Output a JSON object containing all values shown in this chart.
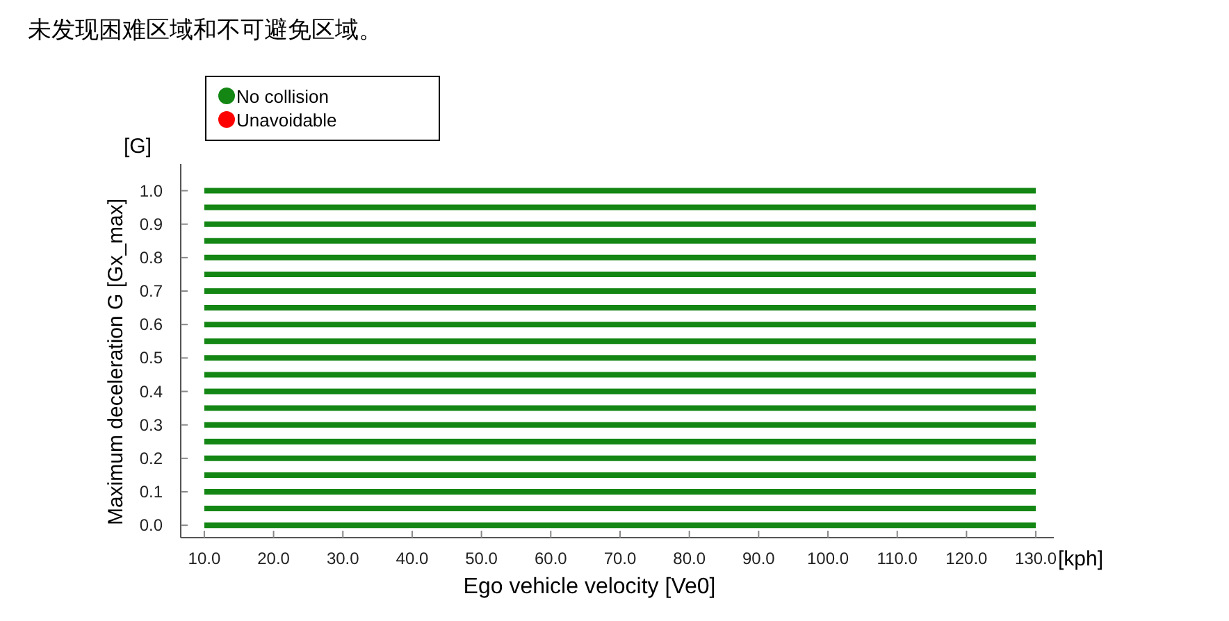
{
  "chart_data": {
    "type": "line",
    "title": "未发现困难区域和不可避免区域。",
    "xlabel": "Ego vehicle velocity [Ve0]",
    "ylabel": "Maximum deceleration G [Gx_max]",
    "annotations": [
      "[G]",
      "[kph]"
    ],
    "x": [
      10,
      130
    ],
    "series": [
      {
        "name": "No collision",
        "color": "#138613",
        "values": [
          0.0,
          0.0
        ]
      },
      {
        "color": "#138613",
        "values": [
          0.05,
          0.05
        ]
      },
      {
        "color": "#138613",
        "values": [
          0.1,
          0.1
        ]
      },
      {
        "color": "#138613",
        "values": [
          0.15,
          0.15
        ]
      },
      {
        "color": "#138613",
        "values": [
          0.2,
          0.2
        ]
      },
      {
        "color": "#138613",
        "values": [
          0.25,
          0.25
        ]
      },
      {
        "color": "#138613",
        "values": [
          0.3,
          0.3
        ]
      },
      {
        "color": "#138613",
        "values": [
          0.35,
          0.35
        ]
      },
      {
        "color": "#138613",
        "values": [
          0.4,
          0.4
        ]
      },
      {
        "color": "#138613",
        "values": [
          0.45,
          0.45
        ]
      },
      {
        "color": "#138613",
        "values": [
          0.5,
          0.5
        ]
      },
      {
        "color": "#138613",
        "values": [
          0.55,
          0.55
        ]
      },
      {
        "color": "#138613",
        "values": [
          0.6,
          0.6
        ]
      },
      {
        "color": "#138613",
        "values": [
          0.65,
          0.65
        ]
      },
      {
        "color": "#138613",
        "values": [
          0.7,
          0.7
        ]
      },
      {
        "color": "#138613",
        "values": [
          0.75,
          0.75
        ]
      },
      {
        "color": "#138613",
        "values": [
          0.8,
          0.8
        ]
      },
      {
        "color": "#138613",
        "values": [
          0.85,
          0.85
        ]
      },
      {
        "color": "#138613",
        "values": [
          0.9,
          0.9
        ]
      },
      {
        "color": "#138613",
        "values": [
          0.95,
          0.95
        ]
      },
      {
        "color": "#138613",
        "values": [
          1.0,
          1.0
        ]
      },
      {
        "name": "Unavoidable",
        "color": "#ff0000",
        "values": [
          null,
          null
        ]
      }
    ],
    "xlim": [
      6.6,
      132.6
    ],
    "ylim": [
      -0.037,
      1.08
    ],
    "xticks": [
      {
        "value": 10,
        "label": "10.0"
      },
      {
        "value": 20,
        "label": "20.0"
      },
      {
        "value": 30,
        "label": "30.0"
      },
      {
        "value": 40,
        "label": "40.0"
      },
      {
        "value": 50,
        "label": "50.0"
      },
      {
        "value": 60,
        "label": "60.0"
      },
      {
        "value": 70,
        "label": "70.0"
      },
      {
        "value": 80,
        "label": "80.0"
      },
      {
        "value": 90,
        "label": "90.0"
      },
      {
        "value": 100,
        "label": "100.0"
      },
      {
        "value": 110,
        "label": "110.0"
      },
      {
        "value": 120,
        "label": "120.0"
      },
      {
        "value": 130,
        "label": "130.0"
      }
    ],
    "yticks": [
      {
        "value": 0,
        "label": "0.0"
      },
      {
        "value": 0.1,
        "label": "0.1"
      },
      {
        "value": 0.2,
        "label": "0.2"
      },
      {
        "value": 0.3,
        "label": "0.3"
      },
      {
        "value": 0.4,
        "label": "0.4"
      },
      {
        "value": 0.5,
        "label": "0.5"
      },
      {
        "value": 0.6,
        "label": "0.6"
      },
      {
        "value": 0.7,
        "label": "0.7"
      },
      {
        "value": 0.8,
        "label": "0.8"
      },
      {
        "value": 0.9,
        "label": "0.9"
      },
      {
        "value": 1.0,
        "label": "1.0"
      }
    ],
    "grid": false,
    "legend": "top left",
    "line_style": "solid"
  }
}
